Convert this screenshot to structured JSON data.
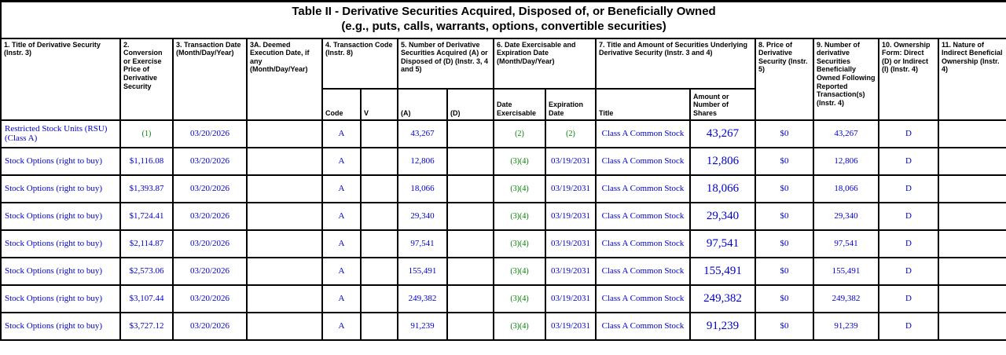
{
  "title": {
    "line1": "Table II - Derivative Securities Acquired, Disposed of, or Beneficially Owned",
    "line2": "(e.g., puts, calls, warrants, options, convertible securities)"
  },
  "columns": {
    "c1": "1. Title of Derivative Security (Instr. 3)",
    "c2": "2. Conversion or Exercise Price of Derivative Security",
    "c3": "3. Transaction Date (Month/Day/Year)",
    "c3a": "3A. Deemed Execution Date, if any (Month/Day/Year)",
    "c4": "4. Transaction Code (Instr. 8)",
    "c5": "5. Number of Derivative Securities Acquired (A) or Disposed of (D) (Instr. 3, 4 and 5)",
    "c6": "6. Date Exercisable and Expiration Date (Month/Day/Year)",
    "c7": "7. Title and Amount of Securities Underlying Derivative Security (Instr. 3 and 4)",
    "c8": "8. Price of Derivative Security (Instr. 5)",
    "c9": "9. Number of derivative Securities Beneficially Owned Following Reported Transaction(s) (Instr. 4)",
    "c10": "10. Ownership Form: Direct (D) or Indirect (I) (Instr. 4)",
    "c11": "11. Nature of Indirect Beneficial Ownership (Instr. 4)"
  },
  "subcolumns": {
    "code": "Code",
    "v": "V",
    "a": "(A)",
    "d": "(D)",
    "date_exercisable": "Date Exercisable",
    "expiration_date": "Expiration Date",
    "title": "Title",
    "amount": "Amount or Number of Shares"
  },
  "colors": {
    "fact_blue": "#0000cc",
    "footnote_green": "#008000",
    "border": "#000000"
  },
  "rows": [
    {
      "title": "Restricted Stock Units (RSU) (Class A)",
      "price": "(1)",
      "transaction_date": "03/20/2026",
      "deemed_date": "",
      "code": "A",
      "v": "",
      "acquired": "43,267",
      "disposed": "",
      "date_exercisable": "(2)",
      "expiration_date": "(2)",
      "underlying_title": "Class A Common Stock",
      "underlying_amount": "43,267",
      "deriv_price": "$0",
      "owned": "43,267",
      "ownership_form": "D",
      "indirect_nature": ""
    },
    {
      "title": "Stock Options (right to buy)",
      "price": "$1,116.08",
      "transaction_date": "03/20/2026",
      "deemed_date": "",
      "code": "A",
      "v": "",
      "acquired": "12,806",
      "disposed": "",
      "date_exercisable": "(3)(4)",
      "expiration_date": "03/19/2031",
      "underlying_title": "Class A Common Stock",
      "underlying_amount": "12,806",
      "deriv_price": "$0",
      "owned": "12,806",
      "ownership_form": "D",
      "indirect_nature": ""
    },
    {
      "title": "Stock Options (right to buy)",
      "price": "$1,393.87",
      "transaction_date": "03/20/2026",
      "deemed_date": "",
      "code": "A",
      "v": "",
      "acquired": "18,066",
      "disposed": "",
      "date_exercisable": "(3)(4)",
      "expiration_date": "03/19/2031",
      "underlying_title": "Class A Common Stock",
      "underlying_amount": "18,066",
      "deriv_price": "$0",
      "owned": "18,066",
      "ownership_form": "D",
      "indirect_nature": ""
    },
    {
      "title": "Stock Options (right to buy)",
      "price": "$1,724.41",
      "transaction_date": "03/20/2026",
      "deemed_date": "",
      "code": "A",
      "v": "",
      "acquired": "29,340",
      "disposed": "",
      "date_exercisable": "(3)(4)",
      "expiration_date": "03/19/2031",
      "underlying_title": "Class A Common Stock",
      "underlying_amount": "29,340",
      "deriv_price": "$0",
      "owned": "29,340",
      "ownership_form": "D",
      "indirect_nature": ""
    },
    {
      "title": "Stock Options (right to buy)",
      "price": "$2,114.87",
      "transaction_date": "03/20/2026",
      "deemed_date": "",
      "code": "A",
      "v": "",
      "acquired": "97,541",
      "disposed": "",
      "date_exercisable": "(3)(4)",
      "expiration_date": "03/19/2031",
      "underlying_title": "Class A Common Stock",
      "underlying_amount": "97,541",
      "deriv_price": "$0",
      "owned": "97,541",
      "ownership_form": "D",
      "indirect_nature": ""
    },
    {
      "title": "Stock Options (right to buy)",
      "price": "$2,573.06",
      "transaction_date": "03/20/2026",
      "deemed_date": "",
      "code": "A",
      "v": "",
      "acquired": "155,491",
      "disposed": "",
      "date_exercisable": "(3)(4)",
      "expiration_date": "03/19/2031",
      "underlying_title": "Class A Common Stock",
      "underlying_amount": "155,491",
      "deriv_price": "$0",
      "owned": "155,491",
      "ownership_form": "D",
      "indirect_nature": ""
    },
    {
      "title": "Stock Options (right to buy)",
      "price": "$3,107.44",
      "transaction_date": "03/20/2026",
      "deemed_date": "",
      "code": "A",
      "v": "",
      "acquired": "249,382",
      "disposed": "",
      "date_exercisable": "(3)(4)",
      "expiration_date": "03/19/2031",
      "underlying_title": "Class A Common Stock",
      "underlying_amount": "249,382",
      "deriv_price": "$0",
      "owned": "249,382",
      "ownership_form": "D",
      "indirect_nature": ""
    },
    {
      "title": "Stock Options (right to buy)",
      "price": "$3,727.12",
      "transaction_date": "03/20/2026",
      "deemed_date": "",
      "code": "A",
      "v": "",
      "acquired": "91,239",
      "disposed": "",
      "date_exercisable": "(3)(4)",
      "expiration_date": "03/19/2031",
      "underlying_title": "Class A Common Stock",
      "underlying_amount": "91,239",
      "deriv_price": "$0",
      "owned": "91,239",
      "ownership_form": "D",
      "indirect_nature": ""
    }
  ]
}
